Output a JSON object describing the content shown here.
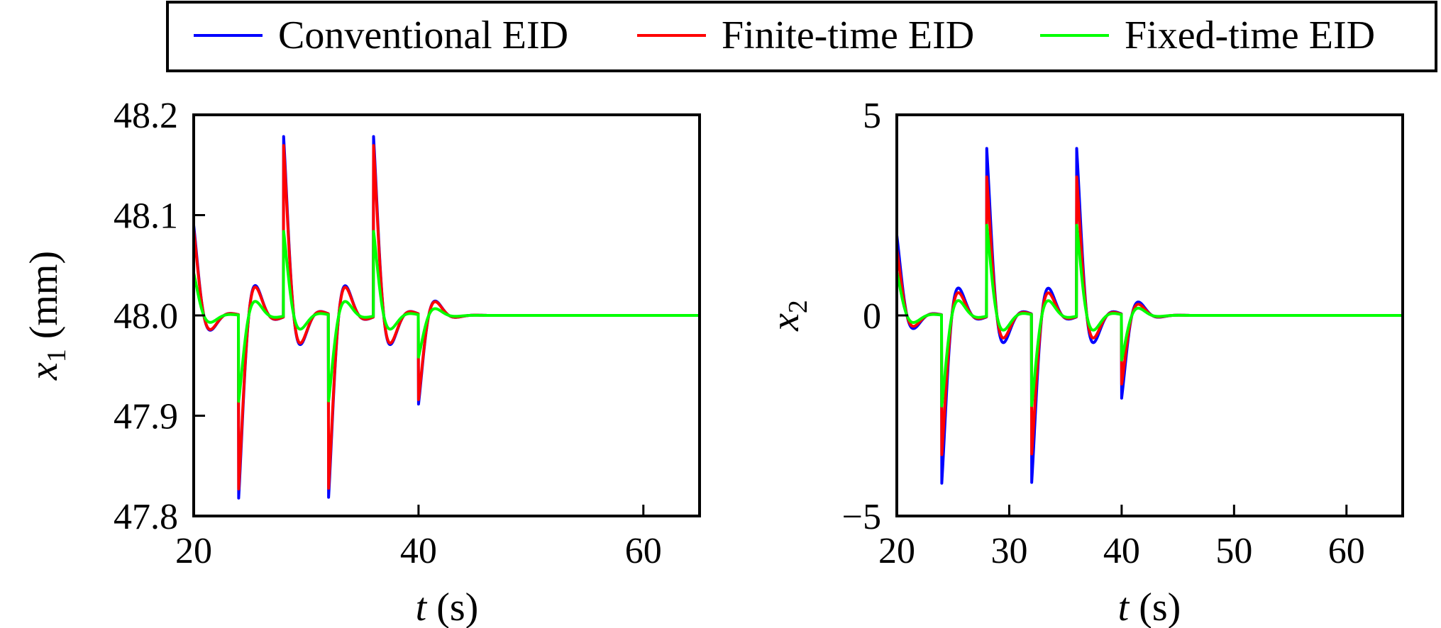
{
  "legend": {
    "entries": [
      {
        "label": "Conventional EID",
        "color": "#0000ff"
      },
      {
        "label": "Finite-time EID",
        "color": "#ff0000"
      },
      {
        "label": "Fixed-time EID",
        "color": "#00ff00"
      }
    ]
  },
  "chart_data": [
    {
      "type": "line",
      "panel": "left",
      "xlabel": "t (s)",
      "ylabel": "x1 (mm)",
      "xlim": [
        20,
        65
      ],
      "ylim": [
        47.8,
        48.2
      ],
      "xticks": [
        20,
        40,
        60
      ],
      "xtick_labels": [
        "20",
        "40",
        "60"
      ],
      "yticks": [
        47.8,
        47.9,
        48.0,
        48.1,
        48.2
      ],
      "ytick_labels": [
        "47.8",
        "47.9",
        "48.0",
        "48.1",
        "48.2"
      ],
      "baseline": 48.0,
      "events": [
        {
          "t": 20,
          "peak": 0.09
        },
        {
          "t": 24,
          "peak": -0.183
        },
        {
          "t": 28,
          "peak": 0.18
        },
        {
          "t": 32,
          "peak": -0.183
        },
        {
          "t": 36,
          "peak": 0.18
        },
        {
          "t": 40,
          "peak": -0.09
        }
      ],
      "series": [
        {
          "name": "Conventional EID",
          "color": "#0000ff",
          "scale": 1.0
        },
        {
          "name": "Finite-time EID",
          "color": "#ff0000",
          "scale": 0.95
        },
        {
          "name": "Fixed-time EID",
          "color": "#00ff00",
          "scale": 0.47
        }
      ]
    },
    {
      "type": "line",
      "panel": "right",
      "xlabel": "t (s)",
      "ylabel": "x2",
      "xlim": [
        20,
        65
      ],
      "ylim": [
        -5,
        5
      ],
      "xticks": [
        20,
        30,
        40,
        50,
        60
      ],
      "xtick_labels": [
        "20",
        "30",
        "40",
        "50",
        "60"
      ],
      "yticks": [
        -5,
        0,
        5
      ],
      "ytick_labels": [
        "−5",
        "0",
        "5"
      ],
      "baseline": 0,
      "events": [
        {
          "t": 20,
          "peak": 2.0
        },
        {
          "t": 24,
          "peak": -4.2
        },
        {
          "t": 28,
          "peak": 4.2
        },
        {
          "t": 32,
          "peak": -4.2
        },
        {
          "t": 36,
          "peak": 4.2
        },
        {
          "t": 40,
          "peak": -2.1
        }
      ],
      "series": [
        {
          "name": "Conventional EID",
          "color": "#0000ff",
          "scale": 1.0
        },
        {
          "name": "Finite-time EID",
          "color": "#ff0000",
          "scale": 0.83
        },
        {
          "name": "Fixed-time EID",
          "color": "#00ff00",
          "scale": 0.54
        }
      ]
    }
  ]
}
